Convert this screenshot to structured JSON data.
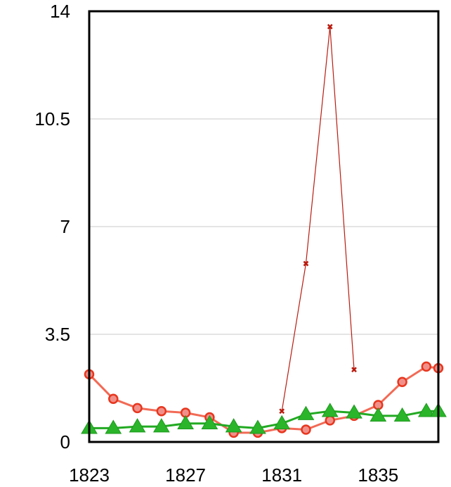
{
  "chart_data": {
    "type": "line",
    "title": "",
    "xlabel": "",
    "ylabel": "",
    "xlim": [
      1823,
      1837.5
    ],
    "ylim": [
      0,
      14
    ],
    "x_ticks": [
      "1823",
      "1827",
      "1831",
      "1835"
    ],
    "y_ticks": [
      "0",
      "3.5",
      "7",
      "10.5",
      "14"
    ],
    "grid": "horizontal",
    "series": [
      {
        "color": "#f26a55",
        "marker": "circle",
        "x": [
          1823,
          1824,
          1825,
          1826,
          1827,
          1828,
          1829,
          1830,
          1831,
          1832,
          1833,
          1834,
          1835,
          1836,
          1837,
          1837.5
        ],
        "y": [
          2.2,
          1.4,
          1.1,
          1.0,
          0.95,
          0.8,
          0.3,
          0.3,
          0.45,
          0.4,
          0.7,
          0.85,
          1.2,
          1.95,
          2.45,
          2.4
        ]
      },
      {
        "color": "#22aa22",
        "marker": "triangle",
        "x": [
          1823,
          1824,
          1825,
          1826,
          1827,
          1828,
          1829,
          1830,
          1831,
          1832,
          1833,
          1834,
          1835,
          1836,
          1837,
          1837.5
        ],
        "y": [
          0.45,
          0.45,
          0.5,
          0.5,
          0.6,
          0.6,
          0.5,
          0.45,
          0.6,
          0.9,
          1.0,
          0.95,
          0.85,
          0.85,
          1.0,
          1.0
        ]
      },
      {
        "color": "#b81c10",
        "marker": "x",
        "x": [
          1831,
          1832,
          1833,
          1834
        ],
        "y": [
          1.0,
          5.8,
          13.5,
          2.35
        ]
      }
    ]
  }
}
